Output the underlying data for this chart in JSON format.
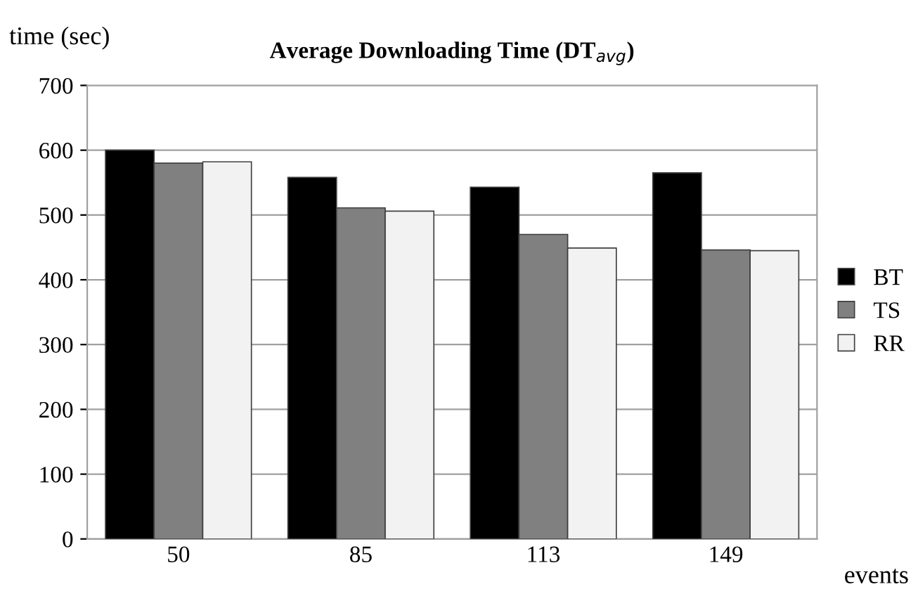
{
  "chart_data": {
    "type": "bar",
    "title": "Average Downloading Time (DT$_{avg}$)",
    "ylabel": "time (sec)",
    "xlabel": "events",
    "categories": [
      "50",
      "85",
      "113",
      "149"
    ],
    "series": [
      {
        "name": "BT",
        "color": "#000000",
        "values": [
          600,
          558,
          543,
          565
        ]
      },
      {
        "name": "TS",
        "color": "#808080",
        "values": [
          580,
          511,
          470,
          446
        ]
      },
      {
        "name": "RR",
        "color": "#f2f2f2",
        "values": [
          582,
          506,
          449,
          445
        ]
      }
    ],
    "ylim": [
      0,
      700
    ],
    "yticks": [
      0,
      100,
      200,
      300,
      400,
      500,
      600,
      700
    ],
    "grid": "y",
    "legend": "right"
  }
}
